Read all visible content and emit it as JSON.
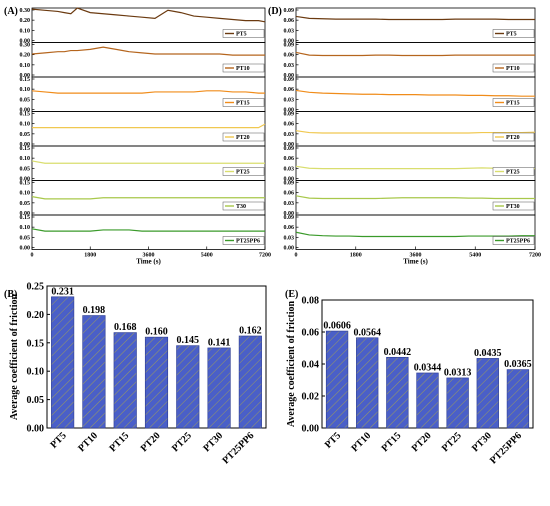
{
  "chart_data": [
    {
      "panel": "(A)",
      "type": "line",
      "xlabel": "Time (s)",
      "xlim": [
        0,
        7200
      ],
      "x_ticks": [
        "0",
        "1800",
        "3600",
        "5400",
        "7200"
      ],
      "x": [
        0,
        400,
        800,
        1000,
        1200,
        1400,
        1800,
        2200,
        2600,
        3000,
        3400,
        3800,
        4200,
        4600,
        5000,
        5400,
        5800,
        6200,
        6600,
        7000,
        7200
      ],
      "series": [
        {
          "name": "PT5",
          "color": "#6b3a10",
          "ylim": [
            0,
            0.3
          ],
          "y_ticks": [
            "0.00",
            "0.10",
            "0.20",
            "0.30"
          ],
          "values": [
            0.29,
            0.28,
            0.27,
            0.26,
            0.25,
            0.3,
            0.26,
            0.25,
            0.24,
            0.23,
            0.22,
            0.21,
            0.28,
            0.26,
            0.23,
            0.22,
            0.21,
            0.2,
            0.19,
            0.19,
            0.18
          ]
        },
        {
          "name": "PT10",
          "color": "#b5651d",
          "ylim": [
            0,
            0.3
          ],
          "y_ticks": [
            "0.00",
            "0.10",
            "0.20",
            "0.30"
          ],
          "values": [
            0.2,
            0.21,
            0.22,
            0.22,
            0.23,
            0.23,
            0.24,
            0.26,
            0.24,
            0.22,
            0.21,
            0.2,
            0.2,
            0.2,
            0.2,
            0.2,
            0.2,
            0.19,
            0.19,
            0.19,
            0.19
          ]
        },
        {
          "name": "PT15",
          "color": "#f08c1a",
          "ylim": [
            0,
            0.3
          ],
          "y_ticks": [
            "0.00",
            "0.05",
            "0.10",
            "0.15"
          ],
          "values": [
            0.18,
            0.17,
            0.16,
            0.16,
            0.16,
            0.16,
            0.16,
            0.16,
            0.16,
            0.16,
            0.16,
            0.17,
            0.17,
            0.17,
            0.17,
            0.18,
            0.18,
            0.17,
            0.17,
            0.16,
            0.16
          ]
        },
        {
          "name": "PT20",
          "color": "#f0c850",
          "ylim": [
            0,
            0.3
          ],
          "y_ticks": [
            "0.00",
            "0.05",
            "0.10",
            "0.15"
          ],
          "values": [
            0.16,
            0.16,
            0.16,
            0.16,
            0.16,
            0.16,
            0.16,
            0.16,
            0.16,
            0.16,
            0.16,
            0.16,
            0.16,
            0.16,
            0.16,
            0.16,
            0.16,
            0.16,
            0.16,
            0.16,
            0.19
          ]
        },
        {
          "name": "PT25",
          "color": "#d9de6e",
          "ylim": [
            0,
            0.3
          ],
          "y_ticks": [
            "0.00",
            "0.05",
            "0.10",
            "0.15"
          ],
          "values": [
            0.17,
            0.15,
            0.15,
            0.15,
            0.15,
            0.15,
            0.15,
            0.15,
            0.15,
            0.15,
            0.15,
            0.15,
            0.15,
            0.15,
            0.15,
            0.15,
            0.15,
            0.15,
            0.15,
            0.15,
            0.15
          ]
        },
        {
          "name": "T30",
          "color": "#a8c84a",
          "ylim": [
            0,
            0.3
          ],
          "y_ticks": [
            "0.00",
            "0.05",
            "0.10",
            "0.15"
          ],
          "values": [
            0.16,
            0.14,
            0.14,
            0.14,
            0.14,
            0.14,
            0.14,
            0.15,
            0.15,
            0.15,
            0.15,
            0.15,
            0.15,
            0.15,
            0.15,
            0.15,
            0.15,
            0.15,
            0.15,
            0.15,
            0.15
          ]
        },
        {
          "name": "PT25PP6",
          "color": "#3a9a2a",
          "ylim": [
            0,
            0.3
          ],
          "y_ticks": [
            "0.00",
            "0.05",
            "0.10",
            "0.15"
          ],
          "values": [
            0.18,
            0.16,
            0.16,
            0.16,
            0.16,
            0.16,
            0.16,
            0.17,
            0.17,
            0.17,
            0.16,
            0.16,
            0.16,
            0.16,
            0.16,
            0.16,
            0.16,
            0.16,
            0.16,
            0.16,
            0.16
          ]
        }
      ]
    },
    {
      "panel": "(D)",
      "type": "line",
      "xlabel": "Time (s)",
      "xlim": [
        0,
        7200
      ],
      "x_ticks": [
        "0",
        "1800",
        "3600",
        "5400",
        "7200"
      ],
      "x": [
        0,
        400,
        800,
        1200,
        1600,
        2000,
        2400,
        2800,
        3200,
        3600,
        4000,
        4400,
        4800,
        5200,
        5600,
        6000,
        6400,
        6800,
        7200
      ],
      "series": [
        {
          "name": "PT5",
          "color": "#6b3a10",
          "ylim": [
            0,
            0.09
          ],
          "y_ticks": [
            "0.00",
            "0.03",
            "0.06",
            "0.09"
          ],
          "values": [
            0.068,
            0.063,
            0.062,
            0.061,
            0.061,
            0.061,
            0.061,
            0.06,
            0.06,
            0.06,
            0.06,
            0.06,
            0.061,
            0.061,
            0.061,
            0.061,
            0.06,
            0.06,
            0.06
          ]
        },
        {
          "name": "PT10",
          "color": "#b5651d",
          "ylim": [
            0,
            0.09
          ],
          "y_ticks": [
            "0.00",
            "0.03",
            "0.06",
            "0.09"
          ],
          "values": [
            0.064,
            0.057,
            0.056,
            0.056,
            0.056,
            0.056,
            0.057,
            0.057,
            0.056,
            0.056,
            0.056,
            0.056,
            0.057,
            0.057,
            0.057,
            0.057,
            0.057,
            0.057,
            0.057
          ]
        },
        {
          "name": "PT15",
          "color": "#f08c1a",
          "ylim": [
            0,
            0.09
          ],
          "y_ticks": [
            "0.00",
            "0.03",
            "0.06",
            "0.09"
          ],
          "values": [
            0.055,
            0.05,
            0.048,
            0.047,
            0.046,
            0.045,
            0.045,
            0.044,
            0.044,
            0.044,
            0.043,
            0.043,
            0.043,
            0.042,
            0.042,
            0.041,
            0.041,
            0.04,
            0.04
          ]
        },
        {
          "name": "PT20",
          "color": "#f0c850",
          "ylim": [
            0,
            0.09
          ],
          "y_ticks": [
            "0.00",
            "0.03",
            "0.06",
            "0.09"
          ],
          "values": [
            0.04,
            0.035,
            0.034,
            0.034,
            0.034,
            0.034,
            0.034,
            0.034,
            0.034,
            0.034,
            0.034,
            0.034,
            0.034,
            0.034,
            0.035,
            0.035,
            0.035,
            0.035,
            0.036
          ]
        },
        {
          "name": "PT25",
          "color": "#d9de6e",
          "ylim": [
            0,
            0.09
          ],
          "y_ticks": [
            "0.00",
            "0.03",
            "0.06",
            "0.09"
          ],
          "values": [
            0.037,
            0.032,
            0.031,
            0.031,
            0.031,
            0.031,
            0.031,
            0.031,
            0.031,
            0.031,
            0.031,
            0.031,
            0.031,
            0.032,
            0.033,
            0.032,
            0.032,
            0.031,
            0.031
          ]
        },
        {
          "name": "PT30",
          "color": "#a8c84a",
          "ylim": [
            0,
            0.09
          ],
          "y_ticks": [
            "0.00",
            "0.03",
            "0.06",
            "0.09"
          ],
          "values": [
            0.05,
            0.044,
            0.043,
            0.043,
            0.043,
            0.043,
            0.043,
            0.044,
            0.045,
            0.045,
            0.045,
            0.045,
            0.045,
            0.044,
            0.044,
            0.043,
            0.043,
            0.043,
            0.043
          ]
        },
        {
          "name": "PT25PP6",
          "color": "#3a9a2a",
          "ylim": [
            0,
            0.09
          ],
          "y_ticks": [
            "0.00",
            "0.03",
            "0.06",
            "0.09"
          ],
          "values": [
            0.045,
            0.038,
            0.036,
            0.035,
            0.035,
            0.034,
            0.034,
            0.034,
            0.034,
            0.034,
            0.034,
            0.034,
            0.034,
            0.035,
            0.035,
            0.035,
            0.035,
            0.036,
            0.036
          ]
        }
      ]
    },
    {
      "panel": "(B)",
      "type": "bar",
      "ylabel": "Average coefficient of friction",
      "ylim": [
        0,
        0.25
      ],
      "y_ticks": [
        "0.00",
        "0.05",
        "0.10",
        "0.15",
        "0.20",
        "0.25"
      ],
      "categories": [
        "PT5",
        "PT10",
        "PT15",
        "PT20",
        "PT25",
        "PT30",
        "PT25PP6"
      ],
      "values": [
        0.231,
        0.198,
        0.168,
        0.16,
        0.145,
        0.141,
        0.162
      ],
      "value_labels": [
        "0.231",
        "0.198",
        "0.168",
        "0.160",
        "0.145",
        "0.141",
        "0.162"
      ],
      "bar_color": "#4a5fc8"
    },
    {
      "panel": "(E)",
      "type": "bar",
      "ylabel": "Average coefficient of friction",
      "ylim": [
        0,
        0.08
      ],
      "y_ticks": [
        "0.00",
        "0.02",
        "0.04",
        "0.06",
        "0.08"
      ],
      "categories": [
        "PT5",
        "PT10",
        "PT15",
        "PT20",
        "PT25",
        "PT30",
        "PT25PP6"
      ],
      "values": [
        0.0606,
        0.0564,
        0.0442,
        0.0344,
        0.0313,
        0.0435,
        0.0365
      ],
      "value_labels": [
        "0.0606",
        "0.0564",
        "0.0442",
        "0.0344",
        "0.0313",
        "0.0435",
        "0.0365"
      ],
      "bar_color": "#4a5fc8"
    }
  ]
}
